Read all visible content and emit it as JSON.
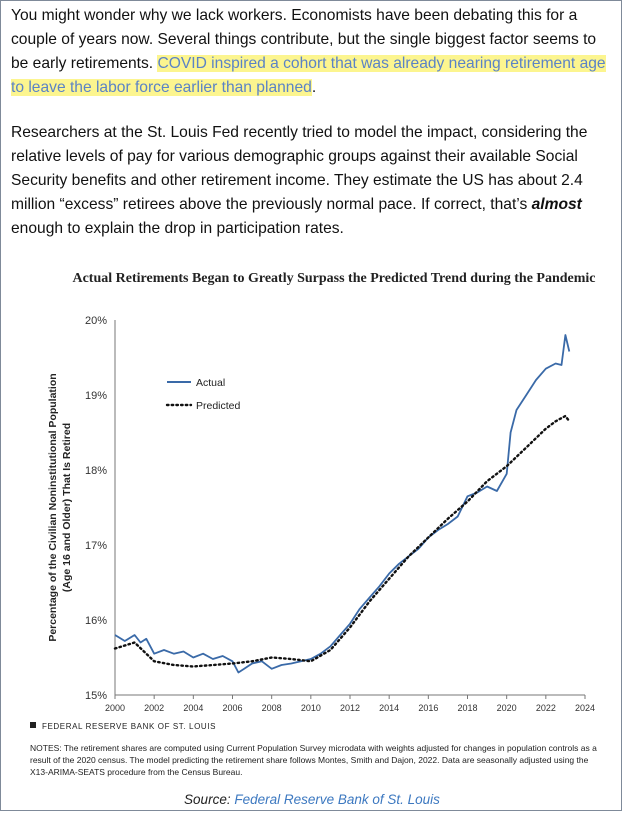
{
  "article": {
    "p1_before": "You might wonder why we lack workers. Economists have been debating this for a couple of years now. Several things contribute, but the single biggest factor seems to be early retirements. ",
    "p1_highlight": "COVID inspired a cohort that was already nearing retirement age to leave the labor force earlier than planned",
    "p1_after": ".",
    "p2_before": "Researchers at the St. Louis Fed recently tried to model the impact, considering the relative levels of pay for various demographic groups against their available Social Security benefits and other retirement income. They estimate the US has about 2.4 million “excess” retirees above the previously normal pace. If correct, that’s ",
    "p2_emphasis": "almost",
    "p2_after": " enough to explain the drop in participation rates."
  },
  "chart_data": {
    "type": "line",
    "title": "Actual Retirements Began to Greatly Surpass the Predicted Trend during the Pandemic",
    "ylabel": "Percentage of the Civilian Noninstitutional Population (Age 16 and Older) That Is Retired",
    "xlabel": "",
    "xlim": [
      2000,
      2024
    ],
    "ylim": [
      15,
      20
    ],
    "x_ticks": [
      "2000",
      "2002",
      "2004",
      "2006",
      "2008",
      "2010",
      "2012",
      "2014",
      "2016",
      "2018",
      "2020",
      "2022",
      "2024"
    ],
    "y_ticks": [
      "15%",
      "16%",
      "17%",
      "18%",
      "19%",
      "20%"
    ],
    "grid": false,
    "legend_position": "top-left",
    "series": [
      {
        "name": "Actual",
        "style": "solid",
        "color": "#3a6aa8",
        "x": [
          2000.0,
          2000.5,
          2001.0,
          2001.3,
          2001.6,
          2002.0,
          2002.5,
          2003.0,
          2003.5,
          2004.0,
          2004.5,
          2005.0,
          2005.5,
          2006.0,
          2006.3,
          2006.6,
          2007.0,
          2007.5,
          2008.0,
          2008.5,
          2009.0,
          2009.5,
          2010.0,
          2010.5,
          2011.0,
          2011.5,
          2012.0,
          2012.5,
          2013.0,
          2013.5,
          2014.0,
          2014.5,
          2015.0,
          2015.5,
          2016.0,
          2016.5,
          2017.0,
          2017.5,
          2018.0,
          2018.5,
          2019.0,
          2019.5,
          2020.0,
          2020.2,
          2020.5,
          2021.0,
          2021.5,
          2022.0,
          2022.5,
          2022.8,
          2023.0,
          2023.2
        ],
        "y": [
          15.8,
          15.72,
          15.8,
          15.7,
          15.75,
          15.55,
          15.6,
          15.55,
          15.58,
          15.5,
          15.55,
          15.48,
          15.52,
          15.45,
          15.3,
          15.35,
          15.42,
          15.45,
          15.35,
          15.4,
          15.42,
          15.45,
          15.48,
          15.55,
          15.65,
          15.8,
          15.95,
          16.15,
          16.3,
          16.45,
          16.62,
          16.75,
          16.85,
          16.95,
          17.1,
          17.2,
          17.28,
          17.38,
          17.65,
          17.7,
          17.78,
          17.72,
          17.95,
          18.5,
          18.8,
          19.0,
          19.2,
          19.35,
          19.42,
          19.4,
          19.8,
          19.58
        ]
      },
      {
        "name": "Predicted",
        "style": "dotted",
        "color": "#111111",
        "x": [
          2000.0,
          2001.0,
          2002.0,
          2003.0,
          2004.0,
          2005.0,
          2006.0,
          2007.0,
          2008.0,
          2009.0,
          2010.0,
          2011.0,
          2012.0,
          2013.0,
          2014.0,
          2015.0,
          2016.0,
          2017.0,
          2018.0,
          2019.0,
          2020.0,
          2021.0,
          2022.0,
          2022.5,
          2023.0,
          2023.2
        ],
        "y": [
          15.62,
          15.7,
          15.45,
          15.4,
          15.38,
          15.4,
          15.42,
          15.45,
          15.5,
          15.48,
          15.45,
          15.6,
          15.9,
          16.25,
          16.55,
          16.85,
          17.1,
          17.35,
          17.58,
          17.85,
          18.05,
          18.3,
          18.55,
          18.65,
          18.72,
          18.65
        ]
      }
    ],
    "footer_label": "FEDERAL RESERVE BANK OF ST. LOUIS",
    "notes": "NOTES: The retirement shares are computed using Current Population Survey microdata with weights adjusted for changes in population controls as a result of the 2020 census. The model predicting the retirement share follows Montes, Smith and Dajon, 2022. Data are seasonally adjusted using the X13-ARIMA-SEATS procedure from the Census Bureau."
  },
  "source": {
    "prefix": "Source: ",
    "link_text": "Federal Reserve Bank of St. Louis"
  }
}
